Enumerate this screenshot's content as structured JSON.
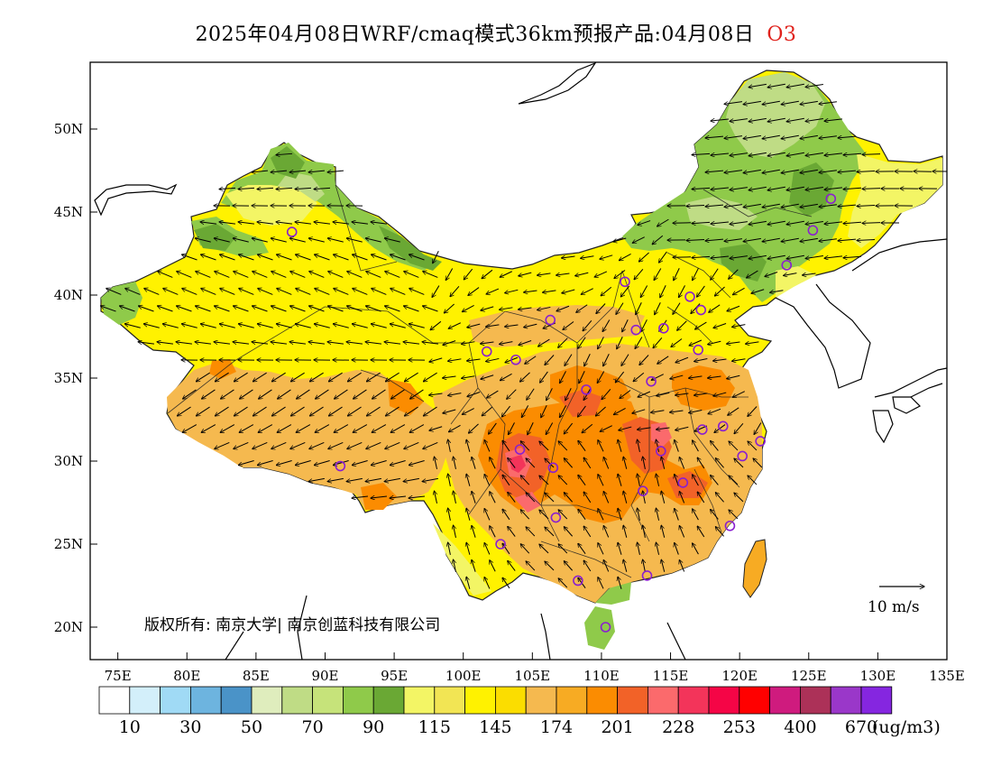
{
  "header": {
    "title": "2025年04月08日WRF/cmaq模式36km预报产品:04月08日",
    "species": "O3"
  },
  "map": {
    "lat_labels": [
      "50N",
      "45N",
      "40N",
      "35N",
      "30N",
      "25N",
      "20N"
    ],
    "lon_labels": [
      "75E",
      "80E",
      "85E",
      "90E",
      "95E",
      "100E",
      "105E",
      "110E",
      "115E",
      "120E",
      "125E",
      "130E",
      "135E"
    ],
    "copyright": "版权所有: 南京大学| 南京创蓝科技有限公司",
    "wind_reference": "10 m/s"
  },
  "colorbar": {
    "colors": [
      "#ffffff",
      "#d3effa",
      "#a0daf5",
      "#6db4df",
      "#4a93c8",
      "#dfedbd",
      "#bfdc85",
      "#c6e37a",
      "#8fca4a",
      "#6aa834",
      "#f3f565",
      "#f2e554",
      "#fff200",
      "#fbdd00",
      "#f5b94f",
      "#f7ab23",
      "#fb8c01",
      "#f26228",
      "#fb6a6c",
      "#f3345a",
      "#f50546",
      "#ff0000",
      "#cf1b7e",
      "#ac3158",
      "#9a37c9",
      "#8526e0"
    ],
    "labels": [
      "10",
      "30",
      "50",
      "70",
      "90",
      "115",
      "145",
      "174",
      "201",
      "228",
      "253",
      "400",
      "670"
    ],
    "unit": "(ug/m3)"
  },
  "stations": [
    {
      "lon": 87.6,
      "lat": 43.8
    },
    {
      "lon": 91.1,
      "lat": 29.7
    },
    {
      "lon": 101.7,
      "lat": 36.6
    },
    {
      "lon": 103.8,
      "lat": 36.1
    },
    {
      "lon": 104.1,
      "lat": 30.7
    },
    {
      "lon": 106.3,
      "lat": 38.5
    },
    {
      "lon": 106.5,
      "lat": 29.6
    },
    {
      "lon": 106.7,
      "lat": 26.6
    },
    {
      "lon": 102.7,
      "lat": 25.0
    },
    {
      "lon": 108.3,
      "lat": 22.8
    },
    {
      "lon": 110.3,
      "lat": 20.0
    },
    {
      "lon": 108.9,
      "lat": 34.3
    },
    {
      "lon": 111.7,
      "lat": 40.8
    },
    {
      "lon": 112.5,
      "lat": 37.9
    },
    {
      "lon": 114.5,
      "lat": 38.0
    },
    {
      "lon": 113.6,
      "lat": 34.8
    },
    {
      "lon": 114.3,
      "lat": 30.6
    },
    {
      "lon": 113.0,
      "lat": 28.2
    },
    {
      "lon": 113.3,
      "lat": 23.1
    },
    {
      "lon": 115.9,
      "lat": 28.7
    },
    {
      "lon": 116.4,
      "lat": 39.9
    },
    {
      "lon": 117.2,
      "lat": 39.1
    },
    {
      "lon": 117.0,
      "lat": 36.7
    },
    {
      "lon": 117.3,
      "lat": 31.9
    },
    {
      "lon": 118.8,
      "lat": 32.1
    },
    {
      "lon": 120.2,
      "lat": 30.3
    },
    {
      "lon": 121.5,
      "lat": 31.2
    },
    {
      "lon": 119.3,
      "lat": 26.1
    },
    {
      "lon": 123.4,
      "lat": 41.8
    },
    {
      "lon": 125.3,
      "lat": 43.9
    },
    {
      "lon": 126.6,
      "lat": 45.8
    }
  ]
}
